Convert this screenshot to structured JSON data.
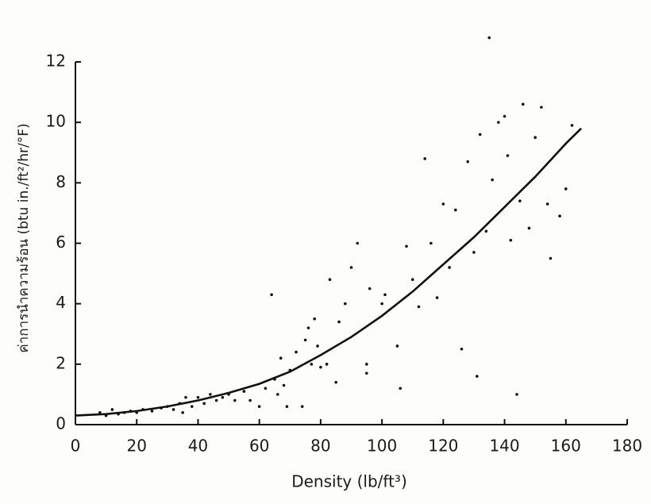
{
  "chart_data": {
    "type": "scatter",
    "x_label": "Density (lb/ft³)",
    "y_label": "ค่าการนำความร้อน (btu in./ft²/hr/°F)",
    "xlim": [
      0,
      180
    ],
    "xticks": [
      0,
      20,
      40,
      60,
      80,
      100,
      120,
      140,
      160,
      180
    ],
    "ylim": [
      0,
      12
    ],
    "yticks": [
      0,
      2,
      4,
      6,
      8,
      10,
      12
    ],
    "series": [
      {
        "type": "scatter",
        "color": "#111111",
        "x": [
          8,
          10,
          12,
          14,
          16,
          18,
          20,
          22,
          25,
          28,
          30,
          32,
          34,
          35,
          36,
          38,
          40,
          42,
          44,
          46,
          48,
          50,
          52,
          55,
          57,
          60,
          62,
          64,
          65,
          66,
          67,
          68,
          69,
          70,
          72,
          74,
          75,
          76,
          77,
          78,
          79,
          80,
          82,
          83,
          85,
          86,
          88,
          90,
          92,
          95,
          95,
          96,
          100,
          101,
          105,
          106,
          108,
          110,
          112,
          114,
          116,
          118,
          120,
          122,
          124,
          126,
          128,
          130,
          131,
          132,
          134,
          135,
          136,
          138,
          140,
          141,
          142,
          144,
          145,
          146,
          148,
          150,
          152,
          154,
          155,
          158,
          160,
          162
        ],
        "y": [
          0.4,
          0.3,
          0.5,
          0.35,
          0.4,
          0.45,
          0.4,
          0.5,
          0.45,
          0.55,
          0.6,
          0.5,
          0.7,
          0.4,
          0.9,
          0.6,
          0.9,
          0.7,
          1.0,
          0.8,
          0.9,
          1.0,
          0.8,
          1.1,
          0.8,
          0.6,
          1.2,
          4.3,
          1.5,
          1.0,
          2.2,
          1.3,
          0.6,
          1.8,
          2.4,
          0.6,
          2.8,
          3.2,
          2.0,
          3.5,
          2.6,
          1.9,
          2.0,
          4.8,
          1.4,
          3.4,
          4.0,
          5.2,
          6.0,
          2.0,
          1.7,
          4.5,
          4.0,
          4.3,
          2.6,
          1.2,
          5.9,
          4.8,
          3.9,
          8.8,
          6.0,
          4.2,
          7.3,
          5.2,
          7.1,
          2.5,
          8.7,
          5.7,
          1.6,
          9.6,
          6.4,
          12.8,
          8.1,
          10.0,
          10.2,
          8.9,
          6.1,
          1.0,
          7.4,
          10.6,
          6.5,
          9.5,
          10.5,
          7.3,
          5.5,
          6.9,
          7.8,
          9.9
        ]
      },
      {
        "type": "line",
        "color": "#111111",
        "x": [
          0,
          10,
          20,
          30,
          40,
          50,
          60,
          70,
          80,
          90,
          100,
          110,
          120,
          130,
          140,
          150,
          160,
          165
        ],
        "y": [
          0.3,
          0.35,
          0.45,
          0.6,
          0.8,
          1.05,
          1.35,
          1.75,
          2.3,
          2.9,
          3.6,
          4.4,
          5.3,
          6.2,
          7.2,
          8.2,
          9.3,
          9.8
        ]
      }
    ]
  }
}
